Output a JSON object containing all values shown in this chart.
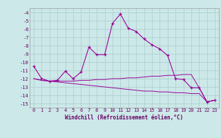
{
  "xlabel": "Windchill (Refroidissement éolien,°C)",
  "hours": [
    0,
    1,
    2,
    3,
    4,
    5,
    6,
    7,
    8,
    9,
    10,
    11,
    12,
    13,
    14,
    15,
    16,
    17,
    18,
    19,
    20,
    21,
    22,
    23
  ],
  "windchill": [
    -10.5,
    -12.0,
    -12.3,
    -12.2,
    -11.1,
    -12.0,
    -11.2,
    -8.2,
    -9.1,
    -9.1,
    -5.3,
    -4.2,
    -5.9,
    -6.3,
    -7.2,
    -7.9,
    -8.4,
    -9.2,
    -12.0,
    -12.1,
    -13.1,
    -13.1,
    -14.8,
    -14.6
  ],
  "temp_line1": [
    -12.0,
    -12.2,
    -12.3,
    -12.3,
    -12.3,
    -12.3,
    -12.2,
    -12.2,
    -12.1,
    -12.1,
    -12.0,
    -12.0,
    -11.9,
    -11.9,
    -11.8,
    -11.7,
    -11.7,
    -11.6,
    -11.6,
    -11.5,
    -11.5,
    -13.1,
    -14.8,
    -14.6
  ],
  "temp_line2": [
    -12.0,
    -12.2,
    -12.3,
    -12.4,
    -12.5,
    -12.6,
    -12.7,
    -12.8,
    -12.9,
    -13.0,
    -13.1,
    -13.2,
    -13.3,
    -13.4,
    -13.5,
    -13.5,
    -13.6,
    -13.6,
    -13.7,
    -13.7,
    -13.8,
    -13.8,
    -14.8,
    -14.6
  ],
  "ylim": [
    -15.5,
    -3.5
  ],
  "yticks": [
    -15,
    -14,
    -13,
    -12,
    -11,
    -10,
    -9,
    -8,
    -7,
    -6,
    -5,
    -4
  ],
  "xlim": [
    -0.5,
    23.5
  ],
  "line_color": "#990099",
  "bg_color": "#cce8e8",
  "grid_color": "#aacccc",
  "font_color": "#660066",
  "tick_fontsize": 5.0,
  "xlabel_fontsize": 5.5
}
